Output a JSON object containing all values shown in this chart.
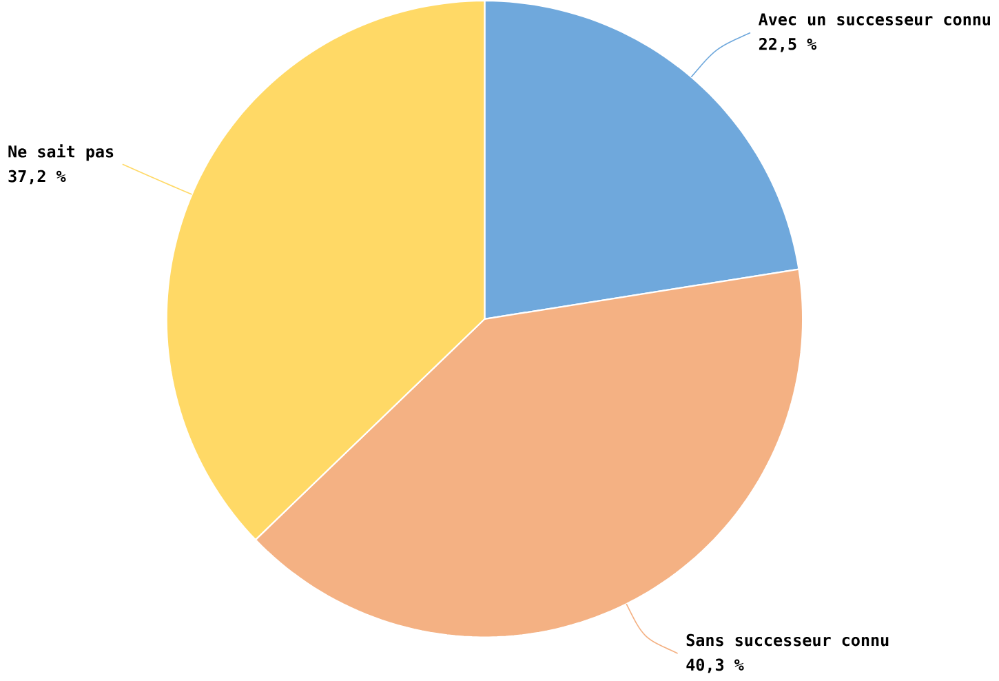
{
  "chart_data": {
    "type": "pie",
    "categories": [
      "Avec un successeur connu",
      "Sans successeur connu",
      "Ne sait pas"
    ],
    "values": [
      22.5,
      40.3,
      37.2
    ],
    "value_labels": [
      "22,5 %",
      "40,3 %",
      "37,2 %"
    ],
    "colors": [
      "#6fa8dc",
      "#f4b183",
      "#ffd966"
    ]
  }
}
